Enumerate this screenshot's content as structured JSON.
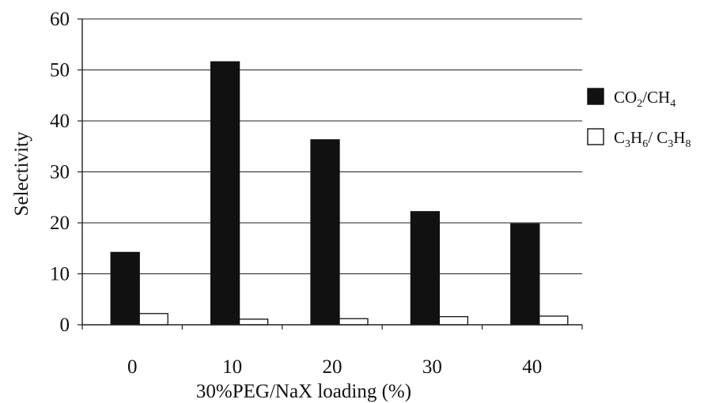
{
  "chart_data": {
    "type": "bar",
    "categories": [
      "0",
      "10",
      "20",
      "30",
      "40"
    ],
    "series": [
      {
        "name": "CO₂/CH₄",
        "label_parts": [
          [
            "CO",
            ""
          ],
          [
            "2",
            "sub"
          ],
          [
            "/CH",
            ""
          ],
          [
            "4",
            "sub"
          ]
        ],
        "values": [
          14.2,
          51.6,
          36.3,
          22.2,
          19.8
        ],
        "color": "#111111"
      },
      {
        "name": "C₃H₆/ C₃H₈",
        "label_parts": [
          [
            "C",
            ""
          ],
          [
            "3",
            "sub"
          ],
          [
            "H",
            ""
          ],
          [
            "6",
            "sub"
          ],
          [
            "/ C",
            ""
          ],
          [
            "3",
            "sub"
          ],
          [
            "H",
            ""
          ],
          [
            "8",
            "sub"
          ]
        ],
        "values": [
          2.2,
          1.1,
          1.2,
          1.6,
          1.7
        ],
        "color": "#ffffff"
      }
    ],
    "xlabel": "30%PEG/NaX loading (%)",
    "ylabel": "Selectivity",
    "ylim": [
      0,
      60
    ],
    "yticks": [
      "0",
      "10",
      "20",
      "30",
      "40",
      "50",
      "60"
    ],
    "grid": true,
    "legend": "right"
  }
}
